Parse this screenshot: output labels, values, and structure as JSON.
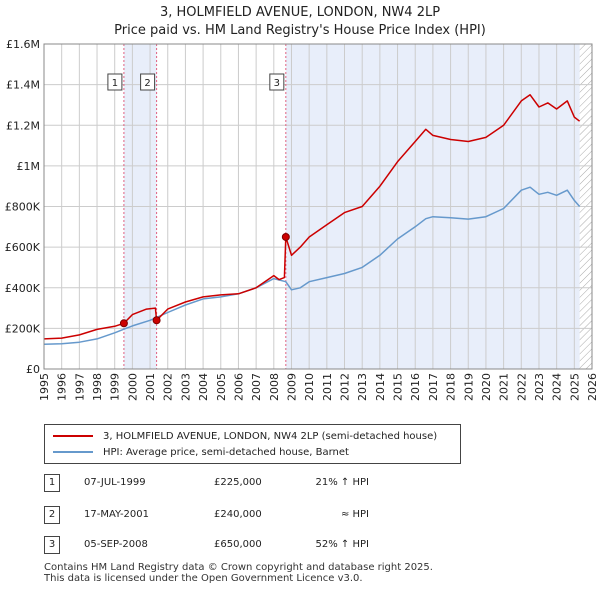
{
  "title_line1": "3, HOLMFIELD AVENUE, LONDON, NW4 2LP",
  "title_line2": "Price paid vs. HM Land Registry's House Price Index (HPI)",
  "legend": {
    "property_label": "3, HOLMFIELD AVENUE, LONDON, NW4 2LP (semi-detached house)",
    "hpi_label": "HPI: Average price, semi-detached house, Barnet"
  },
  "colors": {
    "property": "#cc0000",
    "hpi": "#6699cc",
    "shade": "#e8eefa",
    "grid": "#cccccc",
    "vline": "#e06080"
  },
  "transactions": [
    {
      "num": "1",
      "date": "07-JUL-1999",
      "price": "£225,000",
      "hpi": "21% ↑ HPI"
    },
    {
      "num": "2",
      "date": "17-MAY-2001",
      "price": "£240,000",
      "hpi": "≈ HPI"
    },
    {
      "num": "3",
      "date": "05-SEP-2008",
      "price": "£650,000",
      "hpi": "52% ↑ HPI"
    }
  ],
  "footer_line1": "Contains HM Land Registry data © Crown copyright and database right 2025.",
  "footer_line2": "This data is licensed under the Open Government Licence v3.0.",
  "chart_data": {
    "type": "line",
    "title": "Price paid vs. HM Land Registry's House Price Index (HPI)",
    "xlabel": "",
    "ylabel": "",
    "xlim": [
      1995,
      2026
    ],
    "ylim": [
      0,
      1600000
    ],
    "y_ticks": [
      0,
      200000,
      400000,
      600000,
      800000,
      1000000,
      1200000,
      1400000,
      1600000
    ],
    "y_tick_labels": [
      "£0",
      "£200K",
      "£400K",
      "£600K",
      "£800K",
      "£1M",
      "£1.2M",
      "£1.4M",
      "£1.6M"
    ],
    "x_ticks": [
      1995,
      1996,
      1997,
      1998,
      1999,
      2000,
      2001,
      2002,
      2003,
      2004,
      2005,
      2006,
      2007,
      2008,
      2009,
      2010,
      2011,
      2012,
      2013,
      2014,
      2015,
      2016,
      2017,
      2018,
      2019,
      2020,
      2021,
      2022,
      2023,
      2024,
      2025,
      2026
    ],
    "shaded_regions": [
      [
        1999.52,
        2001.37
      ],
      [
        2008.68,
        2025.3
      ]
    ],
    "hatched_region": [
      2025.3,
      2026
    ],
    "markers": [
      {
        "label": "1",
        "x": 1999.52,
        "y": 225000
      },
      {
        "label": "2",
        "x": 2001.37,
        "y": 240000
      },
      {
        "label": "3",
        "x": 2008.68,
        "y": 650000
      }
    ],
    "series": [
      {
        "name": "3, HOLMFIELD AVENUE, LONDON, NW4 2LP (semi-detached house)",
        "x": [
          1995,
          1996,
          1997,
          1998,
          1999,
          1999.52,
          2000,
          2000.8,
          2001.3,
          2001.37,
          2002,
          2003,
          2004,
          2005,
          2006,
          2007,
          2008,
          2008.3,
          2008.6,
          2008.68,
          2009,
          2009.5,
          2010,
          2011,
          2012,
          2013,
          2014,
          2015,
          2016,
          2016.6,
          2017,
          2018,
          2019,
          2020,
          2021,
          2022,
          2022.5,
          2023,
          2023.5,
          2024,
          2024.6,
          2025,
          2025.3
        ],
        "y": [
          148000,
          152000,
          168000,
          195000,
          210000,
          225000,
          268000,
          295000,
          300000,
          240000,
          295000,
          330000,
          355000,
          365000,
          370000,
          400000,
          460000,
          440000,
          450000,
          650000,
          560000,
          600000,
          650000,
          710000,
          770000,
          800000,
          900000,
          1020000,
          1120000,
          1180000,
          1150000,
          1130000,
          1120000,
          1140000,
          1200000,
          1320000,
          1350000,
          1290000,
          1310000,
          1280000,
          1320000,
          1240000,
          1220000
        ]
      },
      {
        "name": "HPI: Average price, semi-detached house, Barnet",
        "x": [
          1995,
          1996,
          1997,
          1998,
          1999,
          2000,
          2001,
          2002,
          2003,
          2004,
          2005,
          2006,
          2007,
          2008,
          2008.68,
          2009,
          2009.5,
          2010,
          2011,
          2012,
          2013,
          2014,
          2015,
          2016,
          2016.6,
          2017,
          2018,
          2019,
          2020,
          2021,
          2022,
          2022.5,
          2023,
          2023.5,
          2024,
          2024.6,
          2025,
          2025.3
        ],
        "y": [
          122000,
          124000,
          132000,
          148000,
          178000,
          212000,
          240000,
          278000,
          315000,
          345000,
          355000,
          370000,
          400000,
          445000,
          430000,
          390000,
          400000,
          430000,
          450000,
          470000,
          500000,
          560000,
          640000,
          700000,
          740000,
          750000,
          745000,
          738000,
          750000,
          790000,
          880000,
          895000,
          860000,
          870000,
          855000,
          880000,
          830000,
          800000
        ]
      }
    ]
  }
}
